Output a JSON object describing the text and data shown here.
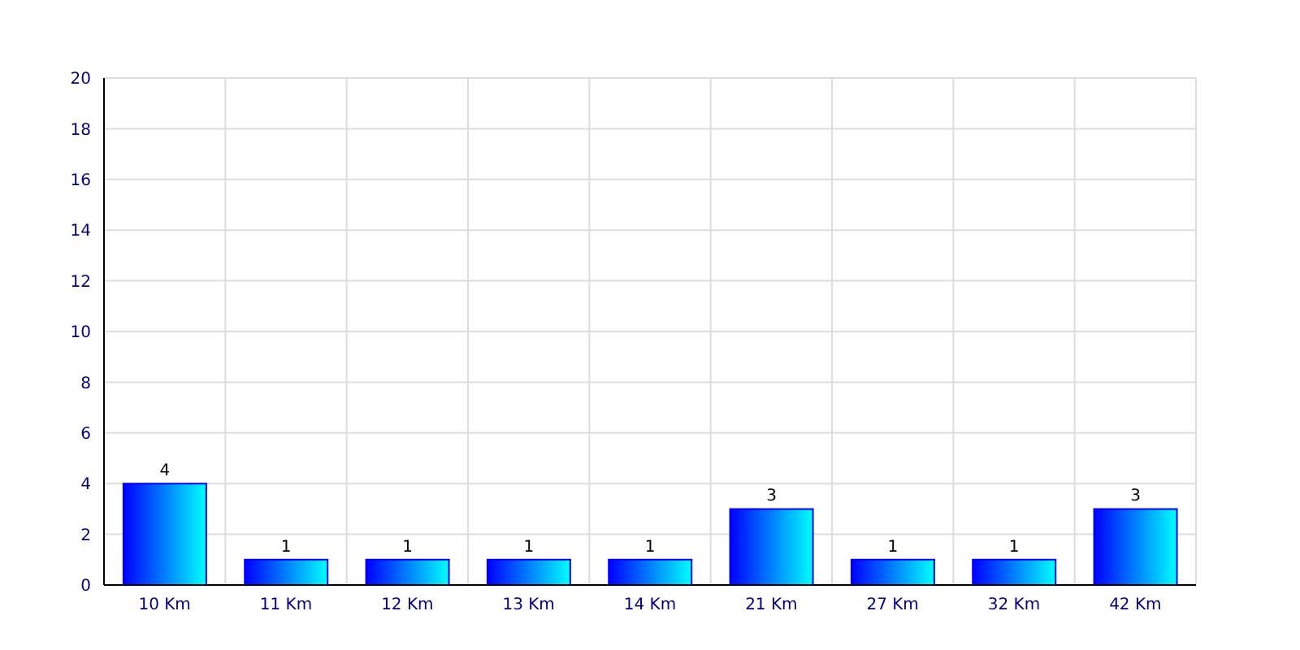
{
  "chart_data": {
    "type": "bar",
    "categories": [
      "10 Km",
      "11 Km",
      "12 Km",
      "13 Km",
      "14 Km",
      "21 Km",
      "27 Km",
      "32 Km",
      "42 Km"
    ],
    "values": [
      4,
      1,
      1,
      1,
      1,
      3,
      1,
      1,
      3
    ],
    "color": "#0000ff",
    "ylim": [
      0,
      20
    ],
    "yticks": [
      0,
      2,
      4,
      6,
      8,
      10,
      12,
      14,
      16,
      18,
      20
    ],
    "grid": true,
    "data_labels": true
  }
}
